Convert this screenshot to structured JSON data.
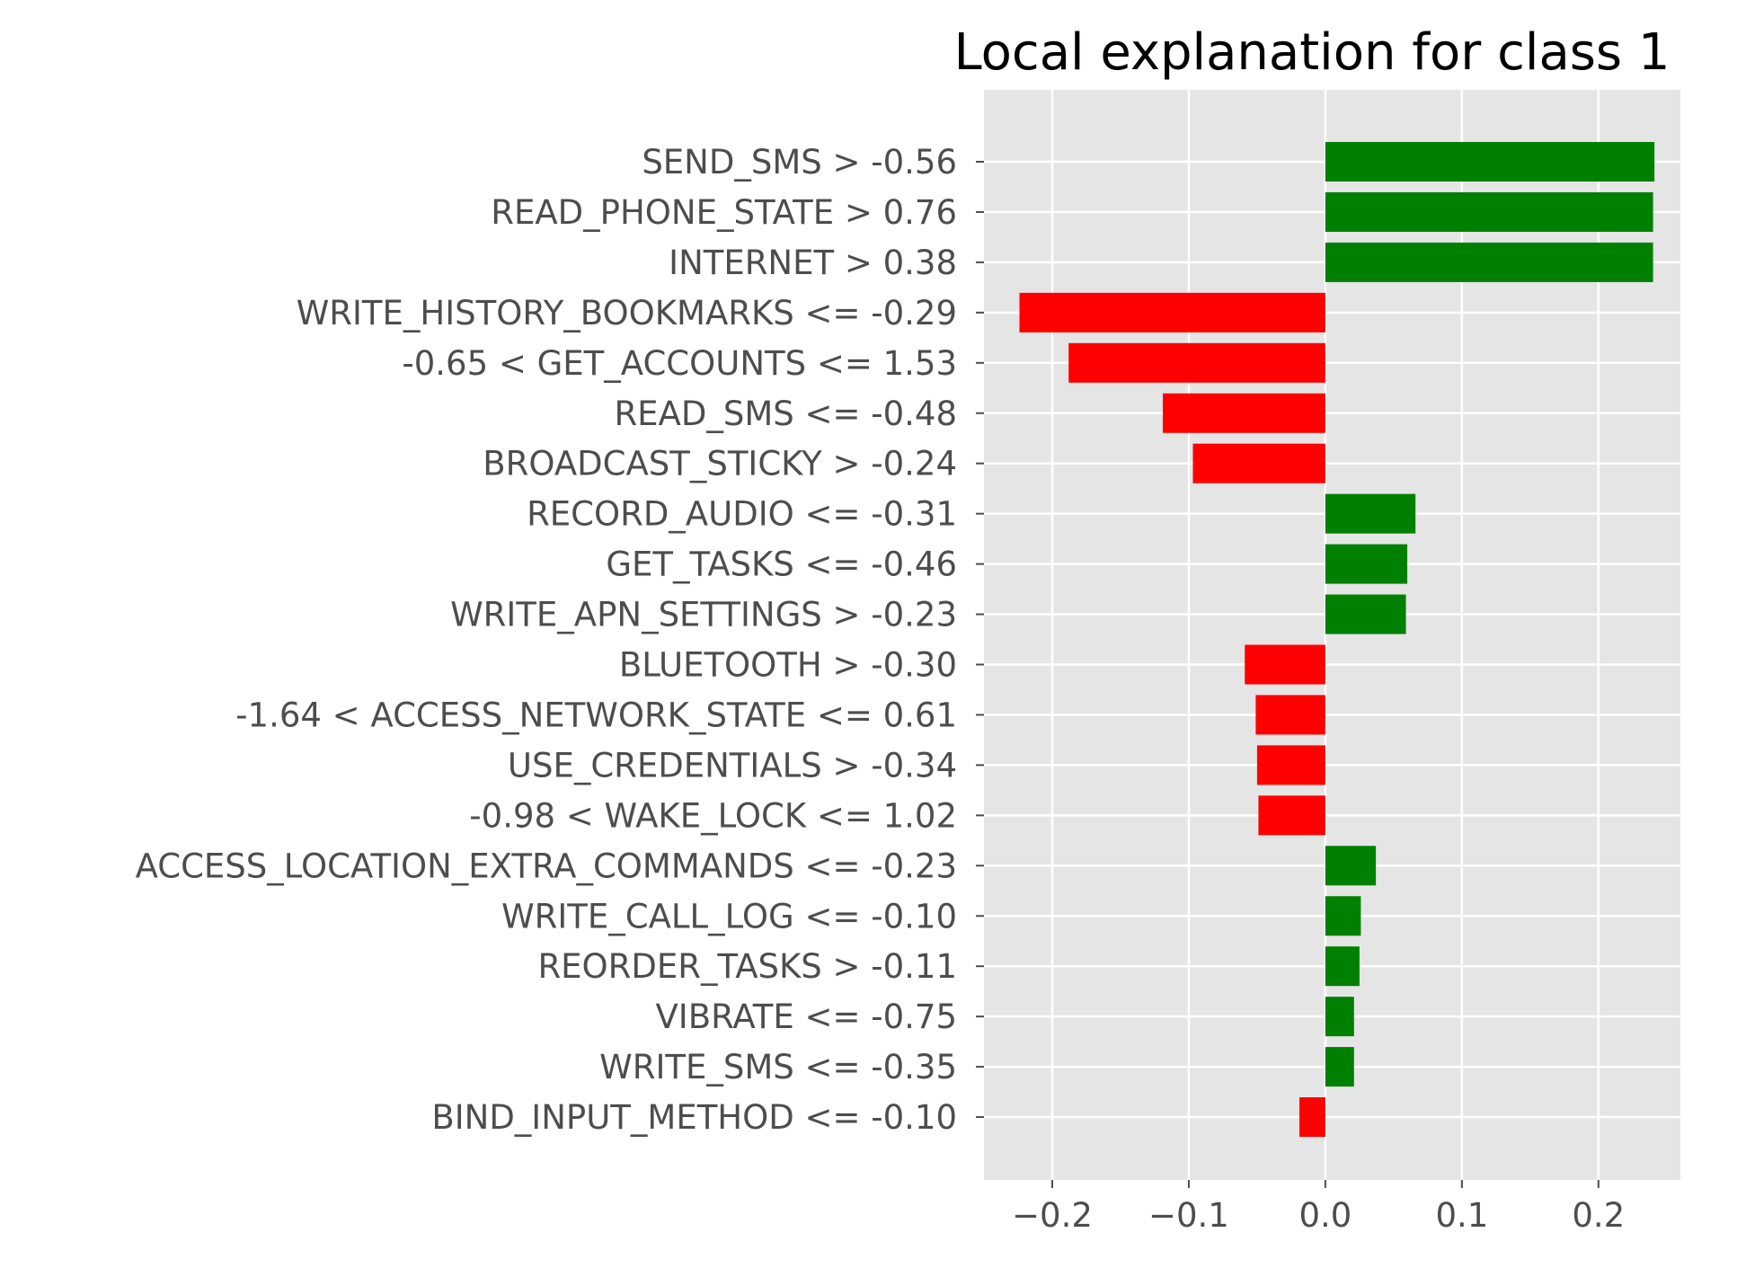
{
  "chart_data": {
    "type": "bar",
    "orientation": "horizontal",
    "title": "Local explanation for class 1",
    "xlabel": "",
    "ylabel": "",
    "xlim": [
      -0.25,
      0.26
    ],
    "xticks": [
      -0.2,
      -0.1,
      0.0,
      0.1,
      0.2
    ],
    "xtick_labels": [
      "−0.2",
      "−0.1",
      "0.0",
      "0.1",
      "0.2"
    ],
    "grid": true,
    "positive_color": "#008000",
    "negative_color": "#ff0000",
    "background_color": "#e5e5e5",
    "categories": [
      "SEND_SMS > -0.56",
      "READ_PHONE_STATE > 0.76",
      "INTERNET > 0.38",
      "WRITE_HISTORY_BOOKMARKS <= -0.29",
      "-0.65 < GET_ACCOUNTS <= 1.53",
      "READ_SMS <= -0.48",
      "BROADCAST_STICKY > -0.24",
      "RECORD_AUDIO <= -0.31",
      "GET_TASKS <= -0.46",
      "WRITE_APN_SETTINGS > -0.23",
      "BLUETOOTH > -0.30",
      "-1.64 < ACCESS_NETWORK_STATE <= 0.61",
      "USE_CREDENTIALS > -0.34",
      "-0.98 < WAKE_LOCK <= 1.02",
      "ACCESS_LOCATION_EXTRA_COMMANDS <= -0.23",
      "WRITE_CALL_LOG <= -0.10",
      "REORDER_TASKS > -0.11",
      "VIBRATE <= -0.75",
      "WRITE_SMS <= -0.35",
      "BIND_INPUT_METHOD <= -0.10"
    ],
    "values": [
      0.241,
      0.24,
      0.24,
      -0.224,
      -0.188,
      -0.119,
      -0.097,
      0.066,
      0.06,
      0.059,
      -0.059,
      -0.051,
      -0.05,
      -0.049,
      0.037,
      0.026,
      0.025,
      0.021,
      0.021,
      -0.019
    ]
  }
}
